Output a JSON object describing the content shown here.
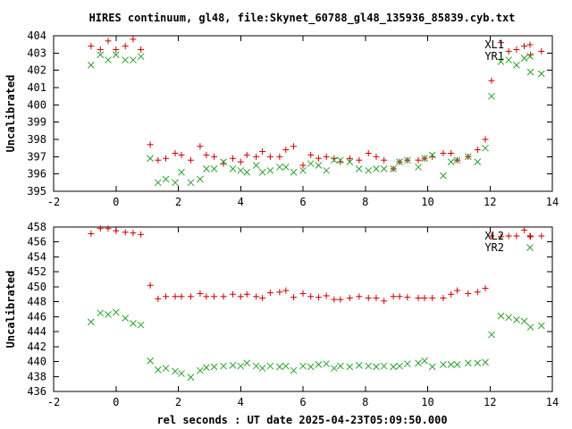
{
  "title": "HIRES continuum, gl48, file:Skynet_60788_gl48_135936_85839.cyb.txt",
  "xlabel": "rel seconds : UT date 2025-04-23T05:09:50.000",
  "chart_data": [
    {
      "type": "scatter",
      "ylabel": "Uncalibrated",
      "xlim": [
        -2,
        14
      ],
      "ylim": [
        395,
        404
      ],
      "x_ticks": [
        "-2",
        "0",
        "2",
        "4",
        "6",
        "8",
        "10",
        "12",
        "14"
      ],
      "y_ticks": [
        "395",
        "396",
        "397",
        "398",
        "399",
        "400",
        "401",
        "402",
        "403",
        "404"
      ],
      "series": [
        {
          "name": "XL1",
          "marker": "plus",
          "color": "#cc0000",
          "points": [
            [
              -0.8,
              403.4
            ],
            [
              -0.5,
              403.2
            ],
            [
              -0.25,
              403.7
            ],
            [
              0.0,
              403.2
            ],
            [
              0.3,
              403.4
            ],
            [
              0.55,
              403.8
            ],
            [
              0.8,
              403.2
            ],
            [
              1.1,
              397.7
            ],
            [
              1.35,
              396.8
            ],
            [
              1.6,
              396.9
            ],
            [
              1.9,
              397.2
            ],
            [
              2.1,
              397.1
            ],
            [
              2.4,
              396.8
            ],
            [
              2.7,
              397.6
            ],
            [
              2.9,
              397.1
            ],
            [
              3.15,
              397.0
            ],
            [
              3.45,
              396.6
            ],
            [
              3.75,
              396.9
            ],
            [
              4.0,
              396.7
            ],
            [
              4.2,
              397.1
            ],
            [
              4.5,
              397.0
            ],
            [
              4.7,
              397.3
            ],
            [
              4.95,
              397.0
            ],
            [
              5.25,
              397.0
            ],
            [
              5.45,
              397.4
            ],
            [
              5.7,
              397.6
            ],
            [
              6.0,
              396.5
            ],
            [
              6.25,
              397.1
            ],
            [
              6.5,
              396.9
            ],
            [
              6.75,
              397.0
            ],
            [
              7.0,
              396.9
            ],
            [
              7.2,
              396.7
            ],
            [
              7.5,
              396.9
            ],
            [
              7.8,
              396.8
            ],
            [
              8.1,
              397.2
            ],
            [
              8.35,
              397.0
            ],
            [
              8.6,
              396.8
            ],
            [
              8.9,
              396.3
            ],
            [
              9.1,
              396.7
            ],
            [
              9.35,
              396.8
            ],
            [
              9.7,
              396.8
            ],
            [
              9.9,
              396.9
            ],
            [
              10.15,
              397.0
            ],
            [
              10.5,
              397.2
            ],
            [
              10.75,
              397.2
            ],
            [
              10.95,
              396.8
            ],
            [
              11.3,
              397.0
            ],
            [
              11.6,
              397.4
            ],
            [
              11.85,
              398.0
            ],
            [
              12.05,
              401.4
            ],
            [
              12.35,
              403.6
            ],
            [
              12.6,
              403.1
            ],
            [
              12.85,
              403.2
            ],
            [
              13.1,
              403.4
            ],
            [
              13.3,
              402.9
            ],
            [
              13.65,
              403.1
            ]
          ]
        },
        {
          "name": "YR1",
          "marker": "cross",
          "color": "#2ca02c",
          "points": [
            [
              -0.8,
              402.3
            ],
            [
              -0.5,
              402.9
            ],
            [
              -0.25,
              402.6
            ],
            [
              0.0,
              402.9
            ],
            [
              0.3,
              402.6
            ],
            [
              0.55,
              402.6
            ],
            [
              0.8,
              402.8
            ],
            [
              1.1,
              396.9
            ],
            [
              1.35,
              395.5
            ],
            [
              1.6,
              395.7
            ],
            [
              1.9,
              395.5
            ],
            [
              2.1,
              396.1
            ],
            [
              2.4,
              395.5
            ],
            [
              2.7,
              395.7
            ],
            [
              2.9,
              396.3
            ],
            [
              3.15,
              396.3
            ],
            [
              3.45,
              396.7
            ],
            [
              3.75,
              396.3
            ],
            [
              4.0,
              396.2
            ],
            [
              4.2,
              396.1
            ],
            [
              4.5,
              396.5
            ],
            [
              4.7,
              396.1
            ],
            [
              4.95,
              396.2
            ],
            [
              5.25,
              396.4
            ],
            [
              5.45,
              396.4
            ],
            [
              5.7,
              396.1
            ],
            [
              6.0,
              396.2
            ],
            [
              6.25,
              396.6
            ],
            [
              6.5,
              396.5
            ],
            [
              6.75,
              396.2
            ],
            [
              7.0,
              396.8
            ],
            [
              7.2,
              396.8
            ],
            [
              7.5,
              396.7
            ],
            [
              7.8,
              396.3
            ],
            [
              8.1,
              396.2
            ],
            [
              8.35,
              396.3
            ],
            [
              8.6,
              396.3
            ],
            [
              8.9,
              396.3
            ],
            [
              9.1,
              396.7
            ],
            [
              9.35,
              396.8
            ],
            [
              9.7,
              396.4
            ],
            [
              9.9,
              396.9
            ],
            [
              10.15,
              397.1
            ],
            [
              10.5,
              395.9
            ],
            [
              10.75,
              396.7
            ],
            [
              10.95,
              396.8
            ],
            [
              11.3,
              397.0
            ],
            [
              11.6,
              396.7
            ],
            [
              11.85,
              397.5
            ],
            [
              12.05,
              400.5
            ],
            [
              12.35,
              402.5
            ],
            [
              12.6,
              402.6
            ],
            [
              12.85,
              402.3
            ],
            [
              13.1,
              402.7
            ],
            [
              13.3,
              401.9
            ],
            [
              13.65,
              401.8
            ]
          ]
        }
      ]
    },
    {
      "type": "scatter",
      "ylabel": "Uncalibrated",
      "xlim": [
        -2,
        14
      ],
      "ylim": [
        436,
        458
      ],
      "x_ticks": [
        "-2",
        "0",
        "2",
        "4",
        "6",
        "8",
        "10",
        "12",
        "14"
      ],
      "y_ticks": [
        "436",
        "438",
        "440",
        "442",
        "444",
        "446",
        "448",
        "450",
        "452",
        "454",
        "456",
        "458"
      ],
      "series": [
        {
          "name": "XL2",
          "marker": "plus",
          "color": "#cc0000",
          "points": [
            [
              -0.8,
              457.1
            ],
            [
              -0.5,
              457.8
            ],
            [
              -0.25,
              457.8
            ],
            [
              0.0,
              457.5
            ],
            [
              0.3,
              457.3
            ],
            [
              0.55,
              457.2
            ],
            [
              0.8,
              457.0
            ],
            [
              1.1,
              450.2
            ],
            [
              1.35,
              448.4
            ],
            [
              1.6,
              448.7
            ],
            [
              1.9,
              448.7
            ],
            [
              2.1,
              448.7
            ],
            [
              2.4,
              448.7
            ],
            [
              2.7,
              449.1
            ],
            [
              2.9,
              448.7
            ],
            [
              3.15,
              448.7
            ],
            [
              3.45,
              448.7
            ],
            [
              3.75,
              449.0
            ],
            [
              4.0,
              448.7
            ],
            [
              4.2,
              449.0
            ],
            [
              4.5,
              448.7
            ],
            [
              4.7,
              448.5
            ],
            [
              4.95,
              449.2
            ],
            [
              5.25,
              449.3
            ],
            [
              5.45,
              449.5
            ],
            [
              5.7,
              448.6
            ],
            [
              6.0,
              449.1
            ],
            [
              6.25,
              448.7
            ],
            [
              6.5,
              448.6
            ],
            [
              6.75,
              448.8
            ],
            [
              7.0,
              448.3
            ],
            [
              7.2,
              448.3
            ],
            [
              7.5,
              448.5
            ],
            [
              7.8,
              448.7
            ],
            [
              8.1,
              448.5
            ],
            [
              8.35,
              448.5
            ],
            [
              8.6,
              448.1
            ],
            [
              8.9,
              448.7
            ],
            [
              9.1,
              448.7
            ],
            [
              9.35,
              448.6
            ],
            [
              9.7,
              448.5
            ],
            [
              9.9,
              448.5
            ],
            [
              10.15,
              448.5
            ],
            [
              10.5,
              448.5
            ],
            [
              10.75,
              449.0
            ],
            [
              10.95,
              449.5
            ],
            [
              11.3,
              449.1
            ],
            [
              11.6,
              449.3
            ],
            [
              11.85,
              449.8
            ],
            [
              12.05,
              456.8
            ],
            [
              12.35,
              456.7
            ],
            [
              12.6,
              456.8
            ],
            [
              12.85,
              456.8
            ],
            [
              13.1,
              457.6
            ],
            [
              13.3,
              456.7
            ],
            [
              13.65,
              456.8
            ]
          ]
        },
        {
          "name": "YR2",
          "marker": "cross",
          "color": "#2ca02c",
          "points": [
            [
              -0.8,
              445.3
            ],
            [
              -0.5,
              446.5
            ],
            [
              -0.25,
              446.3
            ],
            [
              0.0,
              446.6
            ],
            [
              0.3,
              445.8
            ],
            [
              0.55,
              445.1
            ],
            [
              0.8,
              444.9
            ],
            [
              1.1,
              440.1
            ],
            [
              1.35,
              438.9
            ],
            [
              1.6,
              439.1
            ],
            [
              1.9,
              438.7
            ],
            [
              2.1,
              438.4
            ],
            [
              2.4,
              437.9
            ],
            [
              2.7,
              438.8
            ],
            [
              2.9,
              439.2
            ],
            [
              3.15,
              439.3
            ],
            [
              3.45,
              439.4
            ],
            [
              3.75,
              439.5
            ],
            [
              4.0,
              439.4
            ],
            [
              4.2,
              439.8
            ],
            [
              4.5,
              439.4
            ],
            [
              4.7,
              439.1
            ],
            [
              4.95,
              439.4
            ],
            [
              5.25,
              439.3
            ],
            [
              5.45,
              439.4
            ],
            [
              5.7,
              438.8
            ],
            [
              6.0,
              439.4
            ],
            [
              6.25,
              439.3
            ],
            [
              6.5,
              439.6
            ],
            [
              6.75,
              439.7
            ],
            [
              7.0,
              439.1
            ],
            [
              7.2,
              439.4
            ],
            [
              7.5,
              439.3
            ],
            [
              7.8,
              439.5
            ],
            [
              8.1,
              439.4
            ],
            [
              8.35,
              439.3
            ],
            [
              8.6,
              439.4
            ],
            [
              8.9,
              439.3
            ],
            [
              9.1,
              439.4
            ],
            [
              9.35,
              439.7
            ],
            [
              9.7,
              439.8
            ],
            [
              9.9,
              440.1
            ],
            [
              10.15,
              439.3
            ],
            [
              10.5,
              439.6
            ],
            [
              10.75,
              439.6
            ],
            [
              10.95,
              439.6
            ],
            [
              11.3,
              439.8
            ],
            [
              11.6,
              439.8
            ],
            [
              11.85,
              439.9
            ],
            [
              12.05,
              443.6
            ],
            [
              12.35,
              446.1
            ],
            [
              12.6,
              445.9
            ],
            [
              12.85,
              445.6
            ],
            [
              13.1,
              445.4
            ],
            [
              13.3,
              444.6
            ],
            [
              13.65,
              444.8
            ]
          ]
        }
      ]
    }
  ]
}
